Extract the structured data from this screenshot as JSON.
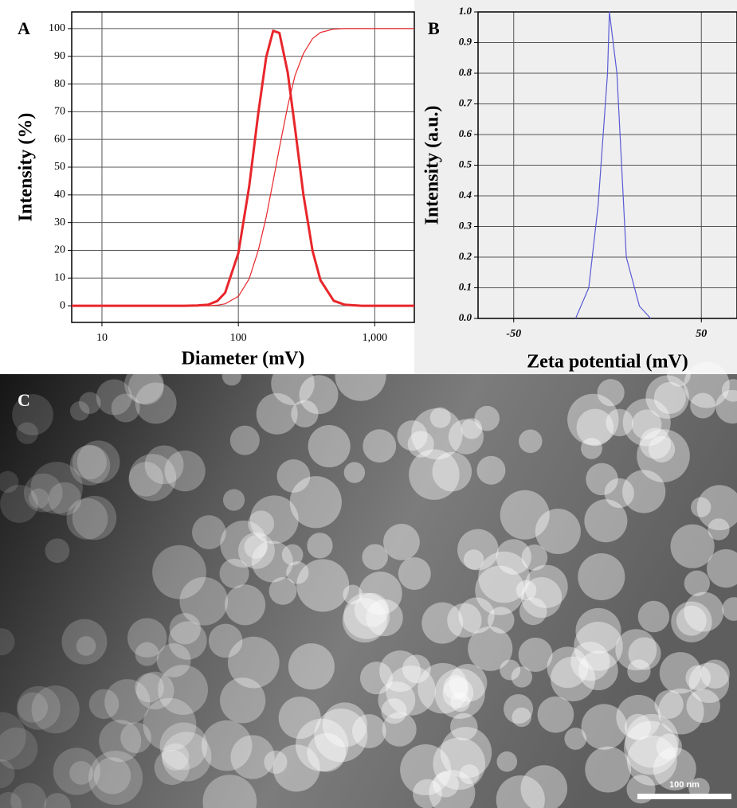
{
  "chart_data": [
    {
      "type": "line",
      "panel_label": "A",
      "x_label": "Diameter (mV)",
      "y_label": "Intensity (%)",
      "log_x": true,
      "grid": true,
      "xlim": [
        6,
        1950
      ],
      "xticks": [
        10,
        100,
        {
          "value": 1000,
          "label": "1,000"
        }
      ],
      "ylim": [
        -6,
        106
      ],
      "yticks": [
        0,
        10,
        20,
        30,
        40,
        50,
        60,
        70,
        80,
        90,
        100
      ],
      "x": [
        6,
        40,
        50,
        60,
        70,
        80,
        100,
        120,
        140,
        160,
        180,
        200,
        230,
        260,
        300,
        350,
        400,
        500,
        600,
        800,
        1000,
        1950
      ],
      "series": [
        {
          "color": "#e8262b",
          "width": 3,
          "values": [
            0,
            0,
            0.1,
            0.4,
            1.7,
            4.7,
            19,
            43,
            69.5,
            89.7,
            99.2,
            98.4,
            84.2,
            64.3,
            40,
            19.8,
            9.2,
            1.8,
            0.4,
            0,
            0,
            0
          ]
        },
        {
          "color": "#e8262b",
          "width": 1.2,
          "values": [
            0,
            0,
            0,
            0,
            0.2,
            0.7,
            3.4,
            9.7,
            20,
            32,
            45,
            57,
            72,
            83,
            91,
            96.4,
            98.6,
            99.8,
            100,
            100,
            100,
            100
          ]
        }
      ]
    },
    {
      "type": "line",
      "panel_label": "B",
      "x_label": "Zeta potential (mV)",
      "y_label": "Intensity (a.u.)",
      "log_x": false,
      "grid": true,
      "xlim": [
        -69,
        69
      ],
      "xticks": [
        -50,
        50
      ],
      "ylim": [
        0,
        1
      ],
      "yticks": [
        {
          "value": 0,
          "label": "0.0"
        },
        0.1,
        0.2,
        0.3,
        0.4,
        0.5,
        0.6,
        0.7,
        0.8,
        0.9,
        {
          "value": 1,
          "label": "1.0"
        }
      ],
      "x": [
        -17,
        -10,
        -5,
        0,
        1,
        5,
        10,
        17,
        23
      ],
      "series": [
        {
          "color": "#5a5ad6",
          "width": 1.2,
          "values": [
            0,
            0.1,
            0.37,
            0.8,
            1.0,
            0.8,
            0.2,
            0.04,
            0
          ]
        }
      ]
    }
  ],
  "image": {
    "panel_label": "C",
    "scale_bar": "100 nm"
  }
}
